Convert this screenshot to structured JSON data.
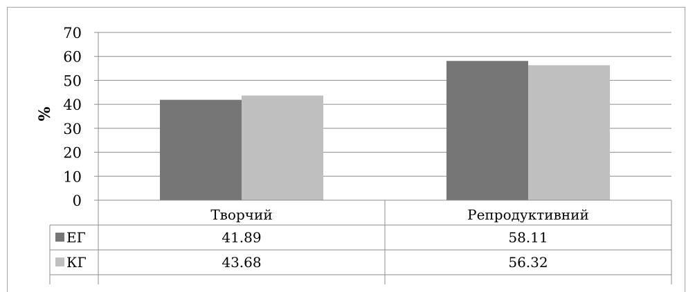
{
  "chart_data": {
    "type": "bar",
    "categories": [
      "Творчий",
      "Репродуктивний"
    ],
    "series": [
      {
        "name": "ЕГ",
        "values": [
          41.89,
          58.11
        ],
        "color": "#767676"
      },
      {
        "name": "КГ",
        "values": [
          43.68,
          56.32
        ],
        "color": "#bfbfbf"
      }
    ],
    "ylabel": "%",
    "ylim": [
      0,
      70
    ],
    "yticks": [
      "0",
      "10",
      "20",
      "30",
      "40",
      "50",
      "60",
      "70"
    ],
    "table_values": [
      [
        "41.89",
        "58.11"
      ],
      [
        "43.68",
        "56.32"
      ]
    ],
    "grid": true,
    "legend": "data-table"
  }
}
